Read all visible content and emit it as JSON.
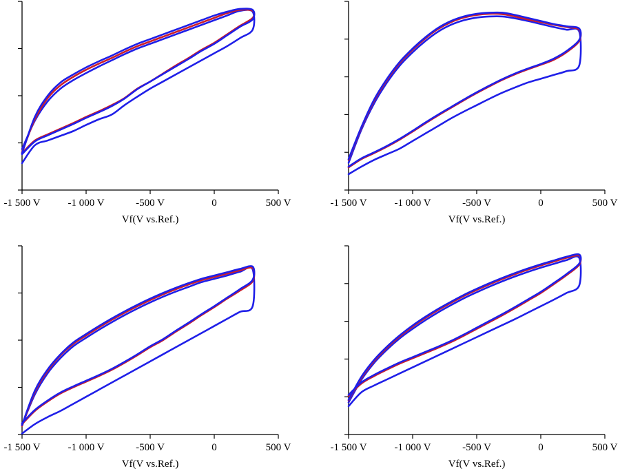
{
  "colors": {
    "blue": "#1f1fe8",
    "red": "#cc1f2a",
    "axis": "#000000"
  },
  "chart_data": [
    {
      "type": "line",
      "panel": "top-left",
      "xlabel": "Vf(V vs.Ref.)",
      "xlim": [
        -1500,
        500
      ],
      "xticks": [
        -1500,
        -1000,
        -500,
        0,
        500
      ],
      "xtick_labels": [
        "-1 500 V",
        "-1 000 V",
        "-500 V",
        "0",
        "500 V"
      ],
      "ylim": [
        0,
        4
      ],
      "yticks": [
        0,
        1,
        2,
        3,
        4
      ],
      "series": [
        {
          "color": "blue",
          "x": [
            -1500,
            -1400,
            -1300,
            -1200,
            -1100,
            -1000,
            -900,
            -800,
            -700,
            -600,
            -500,
            -400,
            -300,
            -200,
            -100,
            0,
            100,
            200,
            300,
            300,
            200,
            100,
            0,
            -100,
            -200,
            -300,
            -400,
            -500,
            -600,
            -700,
            -800,
            -900,
            -1000,
            -1100,
            -1200,
            -1300,
            -1400,
            -1500
          ],
          "y": [
            0.87,
            1.47,
            1.88,
            2.15,
            2.33,
            2.48,
            2.62,
            2.75,
            2.88,
            3.0,
            3.1,
            3.2,
            3.3,
            3.4,
            3.5,
            3.6,
            3.7,
            3.8,
            3.78,
            3.4,
            3.22,
            3.05,
            2.9,
            2.75,
            2.6,
            2.45,
            2.3,
            2.15,
            1.98,
            1.8,
            1.6,
            1.5,
            1.38,
            1.25,
            1.15,
            1.05,
            0.95,
            0.57
          ]
        },
        {
          "color": "red",
          "x": [
            -1500,
            -1400,
            -1300,
            -1200,
            -1100,
            -1000,
            -900,
            -800,
            -700,
            -600,
            -500,
            -400,
            -300,
            -200,
            -100,
            0,
            100,
            200,
            300,
            300,
            200,
            100,
            0,
            -100,
            -200,
            -300,
            -400,
            -500,
            -600,
            -700,
            -800,
            -900,
            -1000,
            -1100,
            -1200,
            -1300,
            -1400,
            -1500
          ],
          "y": [
            0.8,
            1.5,
            1.95,
            2.22,
            2.4,
            2.55,
            2.68,
            2.8,
            2.93,
            3.05,
            3.15,
            3.25,
            3.35,
            3.45,
            3.55,
            3.65,
            3.75,
            3.82,
            3.8,
            3.65,
            3.48,
            3.3,
            3.12,
            2.97,
            2.8,
            2.64,
            2.47,
            2.3,
            2.15,
            1.95,
            1.8,
            1.67,
            1.55,
            1.42,
            1.3,
            1.18,
            1.05,
            0.78
          ]
        },
        {
          "color": "blue",
          "x": [
            -1500,
            -1400,
            -1300,
            -1200,
            -1100,
            -1000,
            -900,
            -800,
            -700,
            -600,
            -500,
            -400,
            -300,
            -200,
            -100,
            0,
            100,
            200,
            300,
            300,
            200,
            100,
            0,
            -100,
            -200,
            -300,
            -400,
            -500,
            -600,
            -700,
            -800,
            -900,
            -1000,
            -1100,
            -1200,
            -1300,
            -1400,
            -1500
          ],
          "y": [
            0.78,
            1.55,
            2.0,
            2.28,
            2.45,
            2.6,
            2.73,
            2.85,
            2.98,
            3.1,
            3.2,
            3.3,
            3.4,
            3.5,
            3.6,
            3.7,
            3.78,
            3.84,
            3.82,
            3.62,
            3.46,
            3.28,
            3.1,
            2.95,
            2.78,
            2.62,
            2.46,
            2.3,
            2.14,
            1.94,
            1.78,
            1.65,
            1.53,
            1.4,
            1.28,
            1.16,
            1.03,
            0.76
          ]
        }
      ]
    },
    {
      "type": "line",
      "panel": "top-right",
      "xlabel": "Vf(V vs.Ref.)",
      "xlim": [
        -1500,
        500
      ],
      "xticks": [
        -1500,
        -1000,
        -500,
        0,
        500
      ],
      "xtick_labels": [
        "-1 500 V",
        "-1 000 V",
        "-500 V",
        "0",
        "500 V"
      ],
      "ylim": [
        0,
        5
      ],
      "yticks": [
        0,
        1,
        2,
        3,
        4,
        5
      ],
      "series": [
        {
          "color": "blue",
          "x": [
            -1500,
            -1400,
            -1300,
            -1200,
            -1100,
            -1000,
            -900,
            -800,
            -700,
            -600,
            -500,
            -400,
            -300,
            -200,
            -100,
            0,
            100,
            200,
            300,
            300,
            200,
            100,
            0,
            -100,
            -200,
            -300,
            -400,
            -500,
            -600,
            -700,
            -800,
            -900,
            -1000,
            -1100,
            -1200,
            -1300,
            -1400,
            -1500
          ],
          "y": [
            0.72,
            1.6,
            2.3,
            2.85,
            3.3,
            3.65,
            3.95,
            4.2,
            4.38,
            4.5,
            4.57,
            4.6,
            4.6,
            4.55,
            4.48,
            4.4,
            4.32,
            4.25,
            4.2,
            3.3,
            3.15,
            3.05,
            2.95,
            2.85,
            2.72,
            2.58,
            2.42,
            2.25,
            2.08,
            1.9,
            1.7,
            1.5,
            1.3,
            1.1,
            0.95,
            0.8,
            0.62,
            0.42
          ]
        },
        {
          "color": "red",
          "x": [
            -1500,
            -1400,
            -1300,
            -1200,
            -1100,
            -1000,
            -900,
            -800,
            -700,
            -600,
            -500,
            -400,
            -300,
            -200,
            -100,
            0,
            100,
            200,
            300,
            300,
            200,
            100,
            0,
            -100,
            -200,
            -300,
            -400,
            -500,
            -600,
            -700,
            -800,
            -900,
            -1000,
            -1100,
            -1200,
            -1300,
            -1400,
            -1500
          ],
          "y": [
            0.8,
            1.65,
            2.37,
            2.92,
            3.37,
            3.72,
            4.02,
            4.27,
            4.45,
            4.57,
            4.64,
            4.67,
            4.66,
            4.6,
            4.52,
            4.45,
            4.38,
            4.32,
            4.25,
            3.95,
            3.65,
            3.45,
            3.32,
            3.2,
            3.07,
            2.92,
            2.75,
            2.57,
            2.38,
            2.18,
            1.98,
            1.77,
            1.55,
            1.34,
            1.15,
            0.98,
            0.82,
            0.6
          ]
        },
        {
          "color": "blue",
          "x": [
            -1500,
            -1400,
            -1300,
            -1200,
            -1100,
            -1000,
            -900,
            -800,
            -700,
            -600,
            -500,
            -400,
            -300,
            -200,
            -100,
            0,
            100,
            200,
            300,
            300,
            200,
            100,
            0,
            -100,
            -200,
            -300,
            -400,
            -500,
            -600,
            -700,
            -800,
            -900,
            -1000,
            -1100,
            -1200,
            -1300,
            -1400,
            -1500
          ],
          "y": [
            0.82,
            1.67,
            2.4,
            2.95,
            3.4,
            3.75,
            4.05,
            4.3,
            4.48,
            4.6,
            4.67,
            4.7,
            4.7,
            4.64,
            4.56,
            4.48,
            4.4,
            4.34,
            4.28,
            3.98,
            3.68,
            3.48,
            3.34,
            3.22,
            3.09,
            2.94,
            2.77,
            2.59,
            2.4,
            2.2,
            2.0,
            1.79,
            1.57,
            1.36,
            1.17,
            1.0,
            0.84,
            0.62
          ]
        }
      ]
    },
    {
      "type": "line",
      "panel": "bottom-left",
      "xlabel": "Vf(V vs.Ref.)",
      "xlim": [
        -1500,
        500
      ],
      "xticks": [
        -1500,
        -1000,
        -500,
        0,
        500
      ],
      "xtick_labels": [
        "-1 500 V",
        "-1 000 V",
        "-500 V",
        "0",
        "500 V"
      ],
      "ylim": [
        0,
        4
      ],
      "yticks": [
        0,
        1,
        2,
        3,
        4
      ],
      "series": [
        {
          "color": "blue",
          "x": [
            -1500,
            -1400,
            -1300,
            -1200,
            -1100,
            -1000,
            -900,
            -800,
            -700,
            -600,
            -500,
            -400,
            -300,
            -200,
            -100,
            0,
            100,
            200,
            300,
            300,
            200,
            100,
            0,
            -100,
            -200,
            -300,
            -400,
            -500,
            -600,
            -700,
            -800,
            -900,
            -1000,
            -1100,
            -1200,
            -1300,
            -1400,
            -1500
          ],
          "y": [
            0.2,
            0.85,
            1.3,
            1.62,
            1.87,
            2.05,
            2.22,
            2.38,
            2.53,
            2.67,
            2.8,
            2.92,
            3.03,
            3.13,
            3.23,
            3.3,
            3.37,
            3.45,
            3.5,
            2.72,
            2.6,
            2.45,
            2.3,
            2.15,
            2.0,
            1.85,
            1.7,
            1.55,
            1.4,
            1.25,
            1.1,
            0.95,
            0.8,
            0.65,
            0.5,
            0.37,
            0.22,
            0.02
          ]
        },
        {
          "color": "red",
          "x": [
            -1500,
            -1400,
            -1300,
            -1200,
            -1100,
            -1000,
            -900,
            -800,
            -700,
            -600,
            -500,
            -400,
            -300,
            -200,
            -100,
            0,
            100,
            200,
            300,
            300,
            200,
            100,
            0,
            -100,
            -200,
            -300,
            -400,
            -500,
            -600,
            -700,
            -800,
            -900,
            -1000,
            -1100,
            -1200,
            -1300,
            -1400,
            -1500
          ],
          "y": [
            0.18,
            0.9,
            1.35,
            1.68,
            1.92,
            2.1,
            2.27,
            2.43,
            2.58,
            2.72,
            2.85,
            2.97,
            3.08,
            3.18,
            3.27,
            3.34,
            3.41,
            3.48,
            3.53,
            3.25,
            3.05,
            2.88,
            2.7,
            2.53,
            2.35,
            2.18,
            2.0,
            1.85,
            1.68,
            1.52,
            1.37,
            1.24,
            1.12,
            1.0,
            0.87,
            0.7,
            0.5,
            0.22
          ]
        },
        {
          "color": "blue",
          "x": [
            -1500,
            -1400,
            -1300,
            -1200,
            -1100,
            -1000,
            -900,
            -800,
            -700,
            -600,
            -500,
            -400,
            -300,
            -200,
            -100,
            0,
            100,
            200,
            300,
            300,
            200,
            100,
            0,
            -100,
            -200,
            -300,
            -400,
            -500,
            -600,
            -700,
            -800,
            -900,
            -1000,
            -1100,
            -1200,
            -1300,
            -1400,
            -1500
          ],
          "y": [
            0.2,
            0.93,
            1.38,
            1.7,
            1.95,
            2.13,
            2.3,
            2.46,
            2.61,
            2.75,
            2.88,
            3.0,
            3.11,
            3.21,
            3.3,
            3.37,
            3.44,
            3.51,
            3.56,
            3.28,
            3.08,
            2.9,
            2.72,
            2.55,
            2.37,
            2.2,
            2.02,
            1.87,
            1.7,
            1.54,
            1.39,
            1.26,
            1.14,
            1.02,
            0.89,
            0.72,
            0.52,
            0.24
          ]
        }
      ]
    },
    {
      "type": "line",
      "panel": "bottom-right",
      "xlabel": "Vf(V vs.Ref.)",
      "xlim": [
        -1500,
        500
      ],
      "xticks": [
        -1500,
        -1000,
        -500,
        0,
        500
      ],
      "xtick_labels": [
        "-1 500 V",
        "-1 000 V",
        "-500 V",
        "0",
        "500 V"
      ],
      "ylim": [
        0,
        5
      ],
      "yticks": [
        0,
        1,
        2,
        3,
        4,
        5
      ],
      "series": [
        {
          "color": "blue",
          "x": [
            -1500,
            -1400,
            -1300,
            -1200,
            -1100,
            -1000,
            -900,
            -800,
            -700,
            -600,
            -500,
            -400,
            -300,
            -200,
            -100,
            0,
            100,
            200,
            300,
            300,
            200,
            100,
            0,
            -100,
            -200,
            -300,
            -400,
            -500,
            -600,
            -700,
            -800,
            -900,
            -1000,
            -1100,
            -1200,
            -1300,
            -1400,
            -1500
          ],
          "y": [
            0.85,
            1.45,
            1.9,
            2.25,
            2.55,
            2.8,
            3.03,
            3.24,
            3.43,
            3.61,
            3.77,
            3.92,
            4.06,
            4.19,
            4.31,
            4.42,
            4.52,
            4.62,
            4.68,
            3.95,
            3.75,
            3.57,
            3.4,
            3.23,
            3.06,
            2.9,
            2.74,
            2.58,
            2.42,
            2.26,
            2.1,
            1.94,
            1.78,
            1.62,
            1.46,
            1.3,
            1.12,
            0.75
          ]
        },
        {
          "color": "red",
          "x": [
            -1500,
            -1400,
            -1300,
            -1200,
            -1100,
            -1000,
            -900,
            -800,
            -700,
            -600,
            -500,
            -400,
            -300,
            -200,
            -100,
            0,
            100,
            200,
            300,
            300,
            200,
            100,
            0,
            -100,
            -200,
            -300,
            -400,
            -500,
            -600,
            -700,
            -800,
            -900,
            -1000,
            -1100,
            -1200,
            -1300,
            -1400,
            -1500
          ],
          "y": [
            0.9,
            1.5,
            1.95,
            2.3,
            2.6,
            2.86,
            3.09,
            3.3,
            3.49,
            3.67,
            3.83,
            3.98,
            4.12,
            4.25,
            4.37,
            4.48,
            4.58,
            4.68,
            4.74,
            4.5,
            4.22,
            3.98,
            3.75,
            3.55,
            3.35,
            3.16,
            2.98,
            2.8,
            2.62,
            2.45,
            2.3,
            2.16,
            2.02,
            1.88,
            1.72,
            1.55,
            1.35,
            1.02
          ]
        },
        {
          "color": "blue",
          "x": [
            -1500,
            -1400,
            -1300,
            -1200,
            -1100,
            -1000,
            -900,
            -800,
            -700,
            -600,
            -500,
            -400,
            -300,
            -200,
            -100,
            0,
            100,
            200,
            300,
            300,
            200,
            100,
            0,
            -100,
            -200,
            -300,
            -400,
            -500,
            -600,
            -700,
            -800,
            -900,
            -1000,
            -1100,
            -1200,
            -1300,
            -1400,
            -1500
          ],
          "y": [
            0.92,
            1.53,
            1.98,
            2.33,
            2.63,
            2.89,
            3.12,
            3.33,
            3.52,
            3.7,
            3.86,
            4.01,
            4.15,
            4.28,
            4.4,
            4.51,
            4.61,
            4.71,
            4.77,
            4.53,
            4.25,
            4.01,
            3.78,
            3.58,
            3.38,
            3.19,
            3.01,
            2.83,
            2.65,
            2.48,
            2.33,
            2.19,
            2.05,
            1.91,
            1.75,
            1.58,
            1.38,
            1.05
          ]
        }
      ]
    }
  ]
}
